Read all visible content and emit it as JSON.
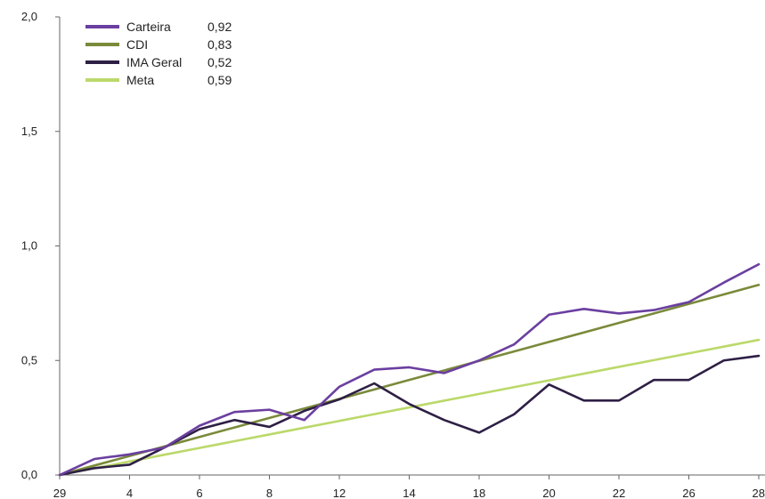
{
  "chart_data": {
    "type": "line",
    "title": "",
    "xlabel": "",
    "ylabel": "",
    "ylim": [
      0,
      2
    ],
    "y_ticks": [
      "0,0",
      "0,5",
      "1,0",
      "1,5",
      "2,0"
    ],
    "y_tick_values": [
      0,
      0.5,
      1.0,
      1.5,
      2.0
    ],
    "x_tick_labels": [
      "29",
      "4",
      "6",
      "8",
      "12",
      "14",
      "18",
      "20",
      "22",
      "26",
      "28"
    ],
    "x_tick_indices": [
      0,
      2,
      4,
      6,
      8,
      10,
      12,
      14,
      16,
      18,
      20
    ],
    "x_count": 21,
    "grid": false,
    "legend_position": "top-left",
    "series": [
      {
        "name": "Carteira",
        "legend_value": "0,92",
        "color": "#6B3FA0",
        "values": [
          0.0,
          0.07,
          0.09,
          0.12,
          0.215,
          0.275,
          0.285,
          0.24,
          0.385,
          0.46,
          0.47,
          0.445,
          0.5,
          0.57,
          0.7,
          0.725,
          0.705,
          0.72,
          0.755,
          0.84,
          0.92
        ]
      },
      {
        "name": "CDI",
        "legend_value": "0,83",
        "color": "#7A8A3A",
        "values": [
          0.0,
          0.0415,
          0.083,
          0.1245,
          0.166,
          0.2075,
          0.249,
          0.2905,
          0.332,
          0.3735,
          0.415,
          0.4565,
          0.498,
          0.5395,
          0.581,
          0.6225,
          0.664,
          0.7055,
          0.747,
          0.7885,
          0.83
        ]
      },
      {
        "name": "IMA Geral",
        "legend_value": "0,52",
        "color": "#2E1F45",
        "values": [
          0.0,
          0.03,
          0.045,
          0.12,
          0.2,
          0.24,
          0.21,
          0.28,
          0.33,
          0.4,
          0.31,
          0.24,
          0.185,
          0.265,
          0.395,
          0.325,
          0.325,
          0.415,
          0.415,
          0.5,
          0.52
        ]
      },
      {
        "name": "Meta",
        "legend_value": "0,59",
        "color": "#BBD96A",
        "values": [
          0.0,
          0.0295,
          0.059,
          0.0885,
          0.118,
          0.1475,
          0.177,
          0.2065,
          0.236,
          0.2655,
          0.295,
          0.3245,
          0.354,
          0.3835,
          0.413,
          0.4425,
          0.472,
          0.5015,
          0.531,
          0.5605,
          0.59
        ]
      }
    ]
  }
}
